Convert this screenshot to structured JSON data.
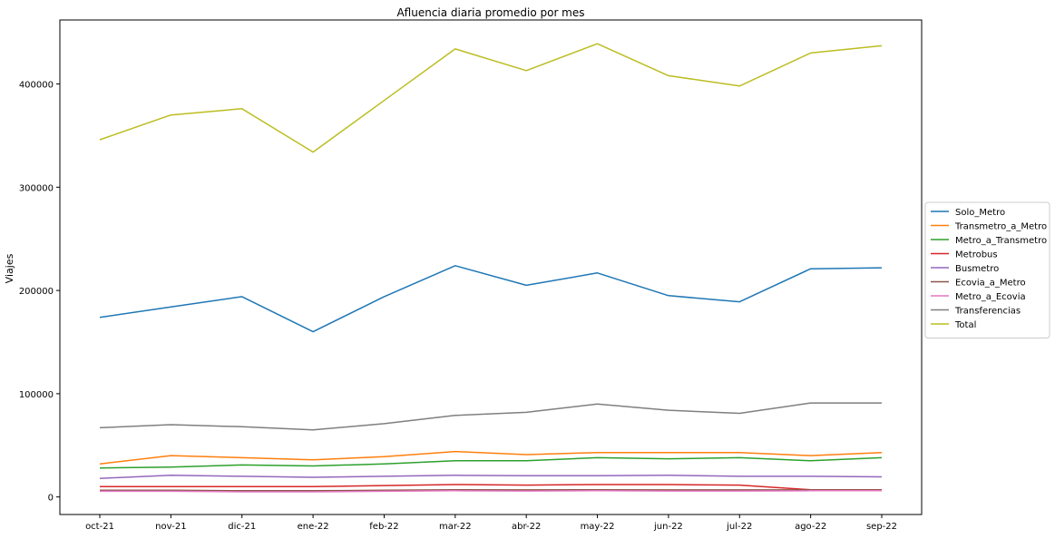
{
  "chart_data": {
    "type": "line",
    "title": "Afluencia diaria promedio por mes",
    "xlabel": "",
    "ylabel": "Viajes",
    "ylim": [
      -17000,
      462000
    ],
    "yticks": [
      0,
      100000,
      200000,
      300000,
      400000
    ],
    "ytick_labels": [
      "0",
      "100000",
      "200000",
      "300000",
      "400000"
    ],
    "categories": [
      "oct-21",
      "nov-21",
      "dic-21",
      "ene-22",
      "feb-22",
      "mar-22",
      "abr-22",
      "may-22",
      "jun-22",
      "jul-22",
      "ago-22",
      "sep-22"
    ],
    "grid": false,
    "legend_position": "right",
    "series": [
      {
        "name": "Solo_Metro",
        "color": "#1f77b4",
        "values": [
          174000,
          184000,
          194000,
          160000,
          194000,
          224000,
          205000,
          217000,
          195000,
          189000,
          221000,
          222000
        ]
      },
      {
        "name": "Transmetro_a_Metro",
        "color": "#ff7f0e",
        "values": [
          32000,
          40000,
          38000,
          36000,
          39000,
          44000,
          41000,
          43000,
          43000,
          43000,
          40000,
          43000
        ]
      },
      {
        "name": "Metro_a_Transmetro",
        "color": "#2ca02c",
        "values": [
          28000,
          29000,
          31000,
          30000,
          32000,
          35000,
          35000,
          38000,
          37000,
          38000,
          35000,
          38000
        ]
      },
      {
        "name": "Metrobus",
        "color": "#d62728",
        "values": [
          10000,
          10000,
          10000,
          10000,
          11000,
          12000,
          11500,
          12000,
          12000,
          11500,
          7000,
          7000
        ]
      },
      {
        "name": "Busmetro",
        "color": "#9467bd",
        "values": [
          18000,
          21000,
          20000,
          19000,
          20000,
          21000,
          20500,
          20500,
          21000,
          20000,
          20000,
          19500
        ]
      },
      {
        "name": "Ecovia_a_Metro",
        "color": "#8c564b",
        "values": [
          6500,
          6500,
          6000,
          6000,
          6500,
          7000,
          6800,
          7000,
          6800,
          6800,
          6800,
          6800
        ]
      },
      {
        "name": "Metro_a_Ecovia",
        "color": "#e377c2",
        "values": [
          5500,
          5500,
          5000,
          5000,
          5500,
          6000,
          5800,
          6000,
          5800,
          5800,
          6000,
          6000
        ]
      },
      {
        "name": "Transferencias",
        "color": "#7f7f7f",
        "values": [
          67000,
          70000,
          68000,
          65000,
          71000,
          79000,
          82000,
          90000,
          84000,
          81000,
          91000,
          91000
        ]
      },
      {
        "name": "Total",
        "color": "#bcbd22",
        "values": [
          346000,
          370000,
          376000,
          334000,
          384000,
          434000,
          413000,
          439000,
          408000,
          398000,
          430000,
          437000
        ]
      }
    ]
  }
}
